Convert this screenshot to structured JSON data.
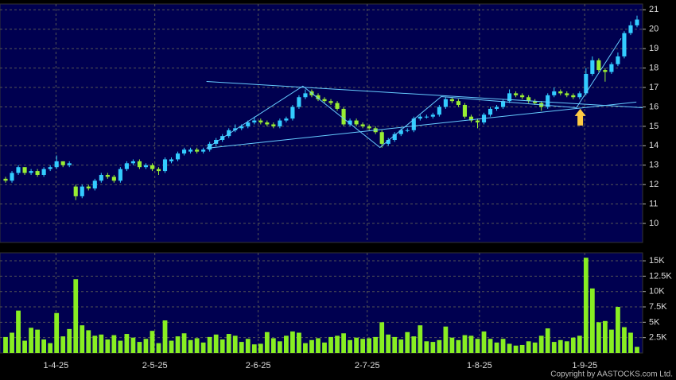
{
  "chart_data": {
    "type": "candlestick",
    "open": [
      12.3,
      12.2,
      12.6,
      12.9,
      12.6,
      12.7,
      12.5,
      12.8,
      12.9,
      13.2,
      13.0,
      11.9,
      11.4,
      11.9,
      11.8,
      12.2,
      12.5,
      12.4,
      12.2,
      12.8,
      13.1,
      13.2,
      12.9,
      13.0,
      12.8,
      12.7,
      13.2,
      13.3,
      13.6,
      13.7,
      13.8,
      13.7,
      13.8,
      14.1,
      14.3,
      14.5,
      14.8,
      14.9,
      15.0,
      15.2,
      15.3,
      15.2,
      15.1,
      15.0,
      15.3,
      15.4,
      16.0,
      16.5,
      16.8,
      16.6,
      16.4,
      16.3,
      16.2,
      15.9,
      15.1,
      15.3,
      15.1,
      15.0,
      14.9,
      14.7,
      14.1,
      14.3,
      14.6,
      14.8,
      14.8,
      15.4,
      15.5,
      15.5,
      15.6,
      16.0,
      16.4,
      16.3,
      16.1,
      15.5,
      15.3,
      15.2,
      15.6,
      15.9,
      16.0,
      16.3,
      16.7,
      16.6,
      16.5,
      16.3,
      16.2,
      16.0,
      16.6,
      16.8,
      16.7,
      16.6,
      16.5,
      16.7,
      17.7,
      18.4,
      17.9,
      17.8,
      18.2,
      18.6,
      19.8,
      20.2
    ],
    "high": [
      12.4,
      12.7,
      13.0,
      12.9,
      12.8,
      12.8,
      12.9,
      13.0,
      13.5,
      13.2,
      13.2,
      12.0,
      12.0,
      12.0,
      12.3,
      12.6,
      12.6,
      12.5,
      12.9,
      13.2,
      13.3,
      13.3,
      13.1,
      13.1,
      12.9,
      13.4,
      13.4,
      13.7,
      13.9,
      13.9,
      13.9,
      13.9,
      14.2,
      14.4,
      14.6,
      14.9,
      15.1,
      15.1,
      15.3,
      15.5,
      15.4,
      15.3,
      15.2,
      15.4,
      15.5,
      16.1,
      16.6,
      16.9,
      16.9,
      16.7,
      16.5,
      16.4,
      16.3,
      16.0,
      15.4,
      15.4,
      15.2,
      15.1,
      15.0,
      14.8,
      14.4,
      14.7,
      14.9,
      14.9,
      15.5,
      15.6,
      15.6,
      15.7,
      16.1,
      16.5,
      16.5,
      16.4,
      16.2,
      15.6,
      15.4,
      15.7,
      16.0,
      16.1,
      16.4,
      16.9,
      16.8,
      16.7,
      16.6,
      16.4,
      16.3,
      16.7,
      17.0,
      16.9,
      16.8,
      16.7,
      16.8,
      18.0,
      18.6,
      18.5,
      18.0,
      18.3,
      18.8,
      19.9,
      20.4,
      20.7
    ],
    "low": [
      12.1,
      12.1,
      12.5,
      12.5,
      12.5,
      12.4,
      12.4,
      12.7,
      12.8,
      12.9,
      12.9,
      11.2,
      11.3,
      11.7,
      11.7,
      12.1,
      12.3,
      12.1,
      12.1,
      12.7,
      13.0,
      12.8,
      12.8,
      12.7,
      12.5,
      12.6,
      13.1,
      13.2,
      13.5,
      13.6,
      13.6,
      13.6,
      13.7,
      14.0,
      14.2,
      14.4,
      14.7,
      14.8,
      14.9,
      15.1,
      15.1,
      15.0,
      14.9,
      14.9,
      15.2,
      15.3,
      15.9,
      16.4,
      16.5,
      16.3,
      16.2,
      16.1,
      15.8,
      15.0,
      15.0,
      15.0,
      14.9,
      14.8,
      14.6,
      13.9,
      14.0,
      14.2,
      14.5,
      14.7,
      14.7,
      15.3,
      15.4,
      15.4,
      15.5,
      15.9,
      16.2,
      16.0,
      15.4,
      15.2,
      14.9,
      15.1,
      15.5,
      15.8,
      15.9,
      16.2,
      16.5,
      16.4,
      16.2,
      16.1,
      15.8,
      15.9,
      16.5,
      16.6,
      16.5,
      16.4,
      16.4,
      16.6,
      17.6,
      17.8,
      17.3,
      17.7,
      18.1,
      18.5,
      19.7,
      20.1
    ],
    "close": [
      12.2,
      12.6,
      12.9,
      12.6,
      12.7,
      12.5,
      12.8,
      12.9,
      13.2,
      13.0,
      13.1,
      11.4,
      11.9,
      11.8,
      12.2,
      12.5,
      12.4,
      12.2,
      12.8,
      13.1,
      13.2,
      12.9,
      13.0,
      12.8,
      12.7,
      13.3,
      13.3,
      13.6,
      13.8,
      13.8,
      13.7,
      13.8,
      14.1,
      14.3,
      14.5,
      14.8,
      14.9,
      15.0,
      15.2,
      15.3,
      15.2,
      15.1,
      15.0,
      15.3,
      15.4,
      16.0,
      16.5,
      16.7,
      16.6,
      16.4,
      16.3,
      16.2,
      15.9,
      15.1,
      15.3,
      15.1,
      15.0,
      14.9,
      14.7,
      14.1,
      14.3,
      14.6,
      14.8,
      14.8,
      15.4,
      15.5,
      15.5,
      15.6,
      16.0,
      16.4,
      16.3,
      16.1,
      15.5,
      15.3,
      15.2,
      15.6,
      15.9,
      16.0,
      16.3,
      16.7,
      16.6,
      16.5,
      16.3,
      16.2,
      16.0,
      16.6,
      16.8,
      16.7,
      16.6,
      16.5,
      16.7,
      17.7,
      18.4,
      17.9,
      17.8,
      18.2,
      18.6,
      19.8,
      20.2,
      20.5
    ],
    "up_color": "#33ccff",
    "down_color": "#99ee33",
    "ylim": [
      9.02,
      21.3
    ],
    "yticks": [
      10,
      11,
      12,
      13,
      14,
      15,
      16,
      17,
      18,
      19,
      20,
      21
    ],
    "grid": true,
    "xlim": [
      -0.5,
      99.5
    ],
    "xticks": [
      {
        "value": 7.9,
        "label": "1-4-25"
      },
      {
        "value": 23.4,
        "label": "2-5-25"
      },
      {
        "value": 39.6,
        "label": "2-6-25"
      },
      {
        "value": 56.7,
        "label": "2-7-25"
      },
      {
        "value": 74.3,
        "label": "1-8-25"
      },
      {
        "value": 90.8,
        "label": "1-9-25"
      }
    ],
    "trendline_color": "#66ccff",
    "trendlines": [
      [
        [
          31.5,
          17.31
        ],
        [
          99.9,
          15.96
        ]
      ],
      [
        [
          31.5,
          13.87
        ],
        [
          98.9,
          16.25
        ]
      ],
      [
        [
          31.5,
          13.87
        ],
        [
          46.6,
          17.07
        ],
        [
          58.7,
          13.91
        ],
        [
          68.3,
          16.53
        ],
        [
          89.5,
          15.96
        ],
        [
          96.5,
          19.53
        ]
      ]
    ],
    "arrow": {
      "x": 90.1,
      "y": 15.9,
      "color": "#ffcc44"
    },
    "volume": {
      "values": [
        2600,
        3300,
        6900,
        2000,
        4100,
        3800,
        2200,
        1600,
        6500,
        2700,
        3900,
        12000,
        4500,
        3700,
        2800,
        3000,
        2200,
        2900,
        2000,
        3100,
        2500,
        1800,
        2300,
        3600,
        1600,
        5300,
        2000,
        2700,
        3200,
        2100,
        2400,
        1700,
        2600,
        3000,
        2200,
        3100,
        2800,
        1800,
        2300,
        1400,
        1500,
        3400,
        2400,
        1900,
        2800,
        3500,
        3300,
        1600,
        2100,
        2400,
        1700,
        2600,
        2800,
        3200,
        2100,
        2500,
        2300,
        2400,
        2600,
        5000,
        3000,
        2600,
        2200,
        3400,
        2700,
        4500,
        1900,
        1800,
        2100,
        4300,
        2500,
        2100,
        2900,
        2800,
        2300,
        3500,
        2300,
        1700,
        2300,
        1500,
        1200,
        1300,
        1900,
        1700,
        2800,
        4000,
        1800,
        2100,
        1900,
        2500,
        2800,
        15500,
        10500,
        5000,
        5200,
        3800,
        7500,
        4200,
        3300,
        1000
      ],
      "color": "#88ee22",
      "ylim": [
        0,
        16300
      ],
      "yticks": [
        {
          "value": 2500,
          "label": "2.5K"
        },
        {
          "value": 5000,
          "label": "5K"
        },
        {
          "value": 7500,
          "label": "7.5K"
        },
        {
          "value": 10000,
          "label": "10K"
        },
        {
          "value": 12500,
          "label": "12.5K"
        },
        {
          "value": 15000,
          "label": "15K"
        }
      ]
    },
    "copyright": "Copyright by AASTOCKS.com Ltd."
  }
}
